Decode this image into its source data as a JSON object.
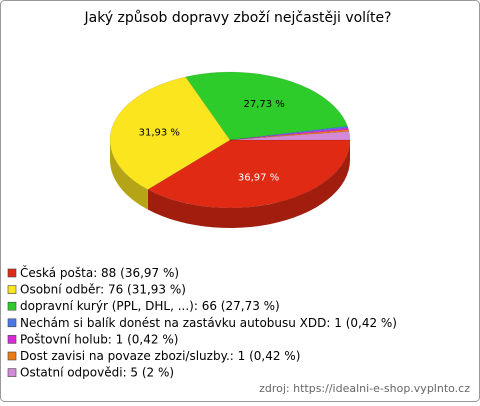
{
  "chart_data": {
    "type": "pie",
    "title": "Jaký způsob dopravy zboží nejčastěji volíte?",
    "categories": [
      "Česká pošta: 88 (36,97 %)",
      "Osobní odběr: 76 (31,93 %)",
      "dopravní kurýr (PPL, DHL, ...): 66 (27,73 %)",
      "Nechám si balík donést na zastávku autobusu XDD: 1 (0,42 %)",
      "Poštovní holub: 1 (0,42 %)",
      "Dost zavisi na povaze zbozi/sluzby.: 1 (0,42 %)",
      "Ostatní odpovědi: 5 (2 %)"
    ],
    "values": [
      36.97,
      31.93,
      27.73,
      0.42,
      0.42,
      0.42,
      2
    ],
    "value_labels": [
      "36,97 %",
      "31,93 %",
      "27,73 %",
      null,
      null,
      null,
      null
    ],
    "colors": [
      "#e02a14",
      "#fbe51e",
      "#2ecc2a",
      "#4a78e8",
      "#d92ad9",
      "#ee7a14",
      "#d58ad8"
    ],
    "source": "zdroj: https://idealni-e-shop.vyplnto.cz"
  }
}
